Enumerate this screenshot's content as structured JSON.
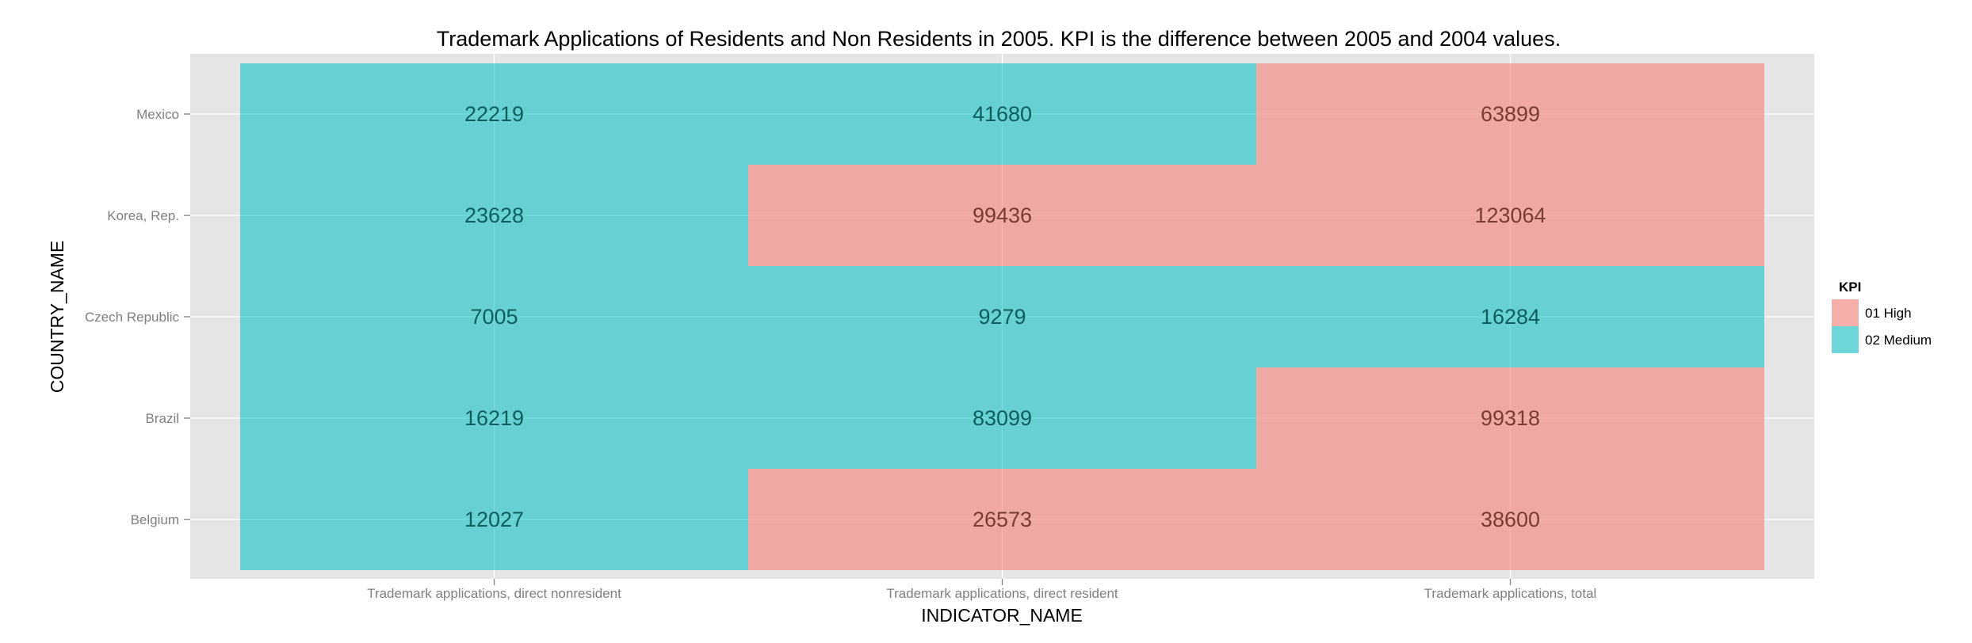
{
  "chart_data": {
    "type": "heatmap",
    "title": "Trademark Applications of Residents and Non Residents in 2005.  KPI is the difference between 2005 and 2004 values.",
    "xlabel": "INDICATOR_NAME",
    "ylabel": "COUNTRY_NAME",
    "x_categories": [
      "Trademark applications, direct nonresident",
      "Trademark applications, direct resident",
      "Trademark applications, total"
    ],
    "y_categories": [
      "Mexico",
      "Korea, Rep.",
      "Czech Republic",
      "Brazil",
      "Belgium"
    ],
    "grid": true,
    "legend": {
      "title": "KPI",
      "position": "right",
      "entries": [
        {
          "label": "01 High",
          "color": "#F8766D"
        },
        {
          "label": "02 Medium",
          "color": "#00BFC4"
        }
      ]
    },
    "cells": [
      {
        "x": "Trademark applications, direct nonresident",
        "y": "Mexico",
        "value": 22219,
        "kpi": "02 Medium"
      },
      {
        "x": "Trademark applications, direct resident",
        "y": "Mexico",
        "value": 41680,
        "kpi": "02 Medium"
      },
      {
        "x": "Trademark applications, total",
        "y": "Mexico",
        "value": 63899,
        "kpi": "01 High"
      },
      {
        "x": "Trademark applications, direct nonresident",
        "y": "Korea, Rep.",
        "value": 23628,
        "kpi": "02 Medium"
      },
      {
        "x": "Trademark applications, direct resident",
        "y": "Korea, Rep.",
        "value": 99436,
        "kpi": "01 High"
      },
      {
        "x": "Trademark applications, total",
        "y": "Korea, Rep.",
        "value": 123064,
        "kpi": "01 High"
      },
      {
        "x": "Trademark applications, direct nonresident",
        "y": "Czech Republic",
        "value": 7005,
        "kpi": "02 Medium"
      },
      {
        "x": "Trademark applications, direct resident",
        "y": "Czech Republic",
        "value": 9279,
        "kpi": "02 Medium"
      },
      {
        "x": "Trademark applications, total",
        "y": "Czech Republic",
        "value": 16284,
        "kpi": "02 Medium"
      },
      {
        "x": "Trademark applications, direct nonresident",
        "y": "Brazil",
        "value": 16219,
        "kpi": "02 Medium"
      },
      {
        "x": "Trademark applications, direct resident",
        "y": "Brazil",
        "value": 83099,
        "kpi": "02 Medium"
      },
      {
        "x": "Trademark applications, total",
        "y": "Brazil",
        "value": 99318,
        "kpi": "01 High"
      },
      {
        "x": "Trademark applications, direct nonresident",
        "y": "Belgium",
        "value": 12027,
        "kpi": "02 Medium"
      },
      {
        "x": "Trademark applications, direct resident",
        "y": "Belgium",
        "value": 26573,
        "kpi": "01 High"
      },
      {
        "x": "Trademark applications, total",
        "y": "Belgium",
        "value": 38600,
        "kpi": "01 High"
      }
    ]
  },
  "colors": {
    "panel_background": "#E5E5E5",
    "grid_line": "#FFFFFF",
    "high_text": "#7A3A36",
    "medium_text": "#0B5E60"
  }
}
